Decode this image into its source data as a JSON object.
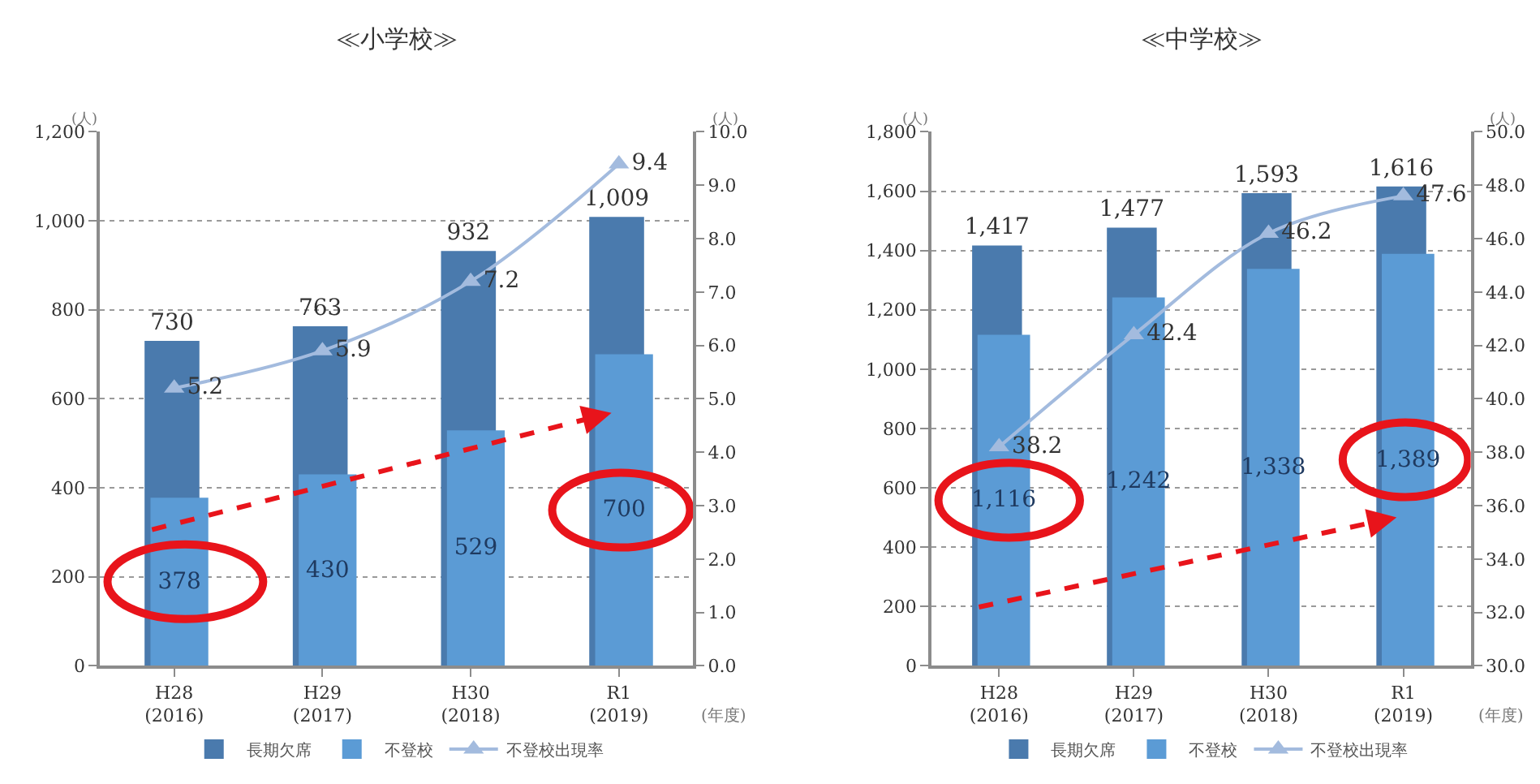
{
  "chart_data": [
    {
      "type": "bar",
      "title": "≪小学校≫",
      "xlabel": "(年度)",
      "ylabel": "(人)",
      "y2label": "(人)",
      "categories": [
        "H28\n(2016)",
        "H29\n(2017)",
        "H30\n(2018)",
        "R1\n(2019)"
      ],
      "series": [
        {
          "name": "長期欠席",
          "color": "#4a7aad",
          "values": [
            730,
            763,
            932,
            1009
          ],
          "value_labels": [
            "730",
            "763",
            "932",
            "1,009"
          ]
        },
        {
          "name": "不登校",
          "color": "#5b9bd5",
          "values": [
            378,
            430,
            529,
            700
          ],
          "value_labels": [
            "378",
            "430",
            "529",
            "700"
          ]
        },
        {
          "name": "不登校出現率",
          "type": "line",
          "axis": "y2",
          "color": "#a3bbde",
          "marker": "triangle",
          "values": [
            5.2,
            5.9,
            7.2,
            9.4
          ],
          "value_labels": [
            "5.2",
            "5.9",
            "7.2",
            "9.4"
          ]
        }
      ],
      "ylim": [
        0,
        1200
      ],
      "yticks": [
        0,
        200,
        400,
        600,
        800,
        {
          "value": 1000,
          "label": "1,000"
        },
        {
          "value": 1200,
          "label": "1,200"
        }
      ],
      "y2lim": [
        0,
        10
      ],
      "y2ticks": [
        {
          "value": 0,
          "label": "0.0"
        },
        {
          "value": 1,
          "label": "1.0"
        },
        {
          "value": 2,
          "label": "2.0"
        },
        {
          "value": 3,
          "label": "3.0"
        },
        {
          "value": 4,
          "label": "4.0"
        },
        {
          "value": 5,
          "label": "5.0"
        },
        {
          "value": 6,
          "label": "6.0"
        },
        {
          "value": 7,
          "label": "7.0"
        },
        {
          "value": 8,
          "label": "8.0"
        },
        {
          "value": 9,
          "label": "9.0"
        },
        {
          "value": 10,
          "label": "10.0"
        }
      ],
      "grid": "y",
      "legend": "bottom"
    },
    {
      "type": "bar",
      "title": "≪中学校≫",
      "xlabel": "(年度)",
      "ylabel": "(人)",
      "y2label": "(人)",
      "categories": [
        "H28\n(2016)",
        "H29\n(2017)",
        "H30\n(2018)",
        "R1\n(2019)"
      ],
      "series": [
        {
          "name": "長期欠席",
          "color": "#4a7aad",
          "values": [
            1417,
            1477,
            1593,
            1616
          ],
          "value_labels": [
            "1,417",
            "1,477",
            "1,593",
            "1,616"
          ]
        },
        {
          "name": "不登校",
          "color": "#5b9bd5",
          "values": [
            1116,
            1242,
            1338,
            1389
          ],
          "value_labels": [
            "1,116",
            "1,242",
            "1,338",
            "1,389"
          ]
        },
        {
          "name": "不登校出現率",
          "type": "line",
          "axis": "y2",
          "color": "#a3bbde",
          "marker": "triangle",
          "values": [
            38.2,
            42.4,
            46.2,
            47.6
          ],
          "value_labels": [
            "38.2",
            "42.4",
            "46.2",
            "47.6"
          ]
        }
      ],
      "ylim": [
        0,
        1800
      ],
      "yticks": [
        0,
        200,
        400,
        600,
        800,
        {
          "value": 1000,
          "label": "1,000"
        },
        {
          "value": 1200,
          "label": "1,200"
        },
        {
          "value": 1400,
          "label": "1,400"
        },
        {
          "value": 1600,
          "label": "1,600"
        },
        {
          "value": 1800,
          "label": "1,800"
        }
      ],
      "y2lim": [
        30,
        50
      ],
      "y2ticks": [
        {
          "value": 30,
          "label": "30.0"
        },
        {
          "value": 32,
          "label": "32.0"
        },
        {
          "value": 34,
          "label": "34.0"
        },
        {
          "value": 36,
          "label": "36.0"
        },
        {
          "value": 38,
          "label": "38.0"
        },
        {
          "value": 40,
          "label": "40.0"
        },
        {
          "value": 42,
          "label": "42.0"
        },
        {
          "value": 44,
          "label": "44.0"
        },
        {
          "value": 46,
          "label": "46.0"
        },
        {
          "value": 48,
          "label": "48.0"
        },
        {
          "value": 50,
          "label": "50.0"
        }
      ],
      "grid": "y",
      "legend": "bottom"
    }
  ]
}
